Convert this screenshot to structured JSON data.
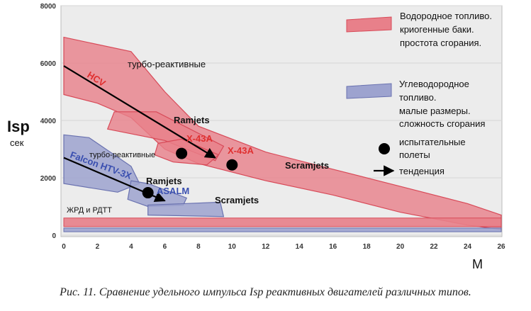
{
  "chart_data": {
    "type": "area",
    "x_axis": {
      "label": "M",
      "ticks": [
        "0",
        "2",
        "4",
        "6",
        "8",
        "10",
        "12",
        "14",
        "16",
        "18",
        "20",
        "22",
        "24",
        "26"
      ],
      "range": [
        0,
        26
      ]
    },
    "y_axis": {
      "label": "Isp",
      "unit": "сек",
      "ticks": [
        "0",
        "2000",
        "4000",
        "6000",
        "8000"
      ],
      "range": [
        0,
        8000
      ]
    },
    "regions": {
      "hydrogen": {
        "color": "#e8808a",
        "stroke": "#d84a58",
        "polygons": [
          [
            [
              0,
              6900
            ],
            [
              4,
              6400
            ],
            [
              6,
              5000
            ],
            [
              8,
              3800
            ],
            [
              12,
              2900
            ],
            [
              16,
              2300
            ],
            [
              20,
              1700
            ],
            [
              24,
              1100
            ],
            [
              26,
              700
            ],
            [
              26,
              200
            ],
            [
              24,
              350
            ],
            [
              20,
              800
            ],
            [
              16,
              1400
            ],
            [
              12,
              1900
            ],
            [
              8,
              2500
            ],
            [
              6,
              3000
            ],
            [
              4,
              4100
            ],
            [
              2,
              4600
            ],
            [
              0,
              4900
            ]
          ],
          [
            [
              3,
              4300
            ],
            [
              5.5,
              4300
            ],
            [
              9.5,
              3100
            ],
            [
              9,
              2600
            ],
            [
              6,
              3300
            ],
            [
              2.6,
              3700
            ]
          ],
          [
            [
              5.6,
              3200
            ],
            [
              7,
              3350
            ],
            [
              9.2,
              2800
            ],
            [
              8.5,
              2450
            ],
            [
              6.5,
              2550
            ],
            [
              5.4,
              2800
            ]
          ]
        ],
        "band": [
          [
            0,
            600
          ],
          [
            26,
            600
          ],
          [
            26,
            300
          ],
          [
            0,
            300
          ]
        ]
      },
      "hydrocarbon": {
        "color": "#9da3cf",
        "stroke": "#6a72b0",
        "polygons": [
          [
            [
              0,
              3500
            ],
            [
              1.5,
              3400
            ],
            [
              4,
              2400
            ],
            [
              4.5,
              1800
            ],
            [
              3.2,
              1500
            ],
            [
              0,
              1800
            ]
          ],
          [
            [
              4,
              1900
            ],
            [
              5,
              1800
            ],
            [
              7.3,
              1300
            ],
            [
              7.1,
              1050
            ],
            [
              5,
              1000
            ],
            [
              3.8,
              1250
            ]
          ],
          [
            [
              5,
              1050
            ],
            [
              9.3,
              1150
            ],
            [
              9.5,
              650
            ],
            [
              5,
              700
            ]
          ]
        ],
        "band": [
          [
            0,
            250
          ],
          [
            26,
            250
          ],
          [
            26,
            120
          ],
          [
            0,
            120
          ]
        ]
      }
    },
    "trends": [
      {
        "from": [
          0,
          5900
        ],
        "to": [
          9,
          2700
        ]
      },
      {
        "from": [
          0,
          2700
        ],
        "to": [
          6,
          1200
        ]
      }
    ],
    "flight_tests": [
      {
        "x": 7.0,
        "y": 2850
      },
      {
        "x": 10.0,
        "y": 2450
      },
      {
        "x": 5.0,
        "y": 1480
      }
    ],
    "annotations": {
      "turbo_top": "турбо-реактивные",
      "hcv": "HCV",
      "ramjets_top": "Ramjets",
      "x43a_1": "X-43A",
      "x43a_2": "X-43A",
      "scramjets_top": "Scramjets",
      "turbo_mid": "турбо-реактивные",
      "falcon": "Falcon HTV-3X",
      "ramjets_bottom": "Ramjets",
      "asalm": "ASALM",
      "scramjets_bottom": "Scramjets",
      "rocket": "ЖРД и РДТТ"
    },
    "legend": {
      "hydrogen": [
        "Водородное топливо.",
        "криогенные баки.",
        "простота сгорания."
      ],
      "hydrocarbon": [
        "Углеводородное",
        "топливо.",
        "малые размеры.",
        "сложность сгорания"
      ],
      "flights": [
        "испытательные",
        "полеты"
      ],
      "trend": "тенденция"
    }
  },
  "caption": "Рис. 11. Сравнение удельного импульса Isp реактивных двигателей различных типов."
}
